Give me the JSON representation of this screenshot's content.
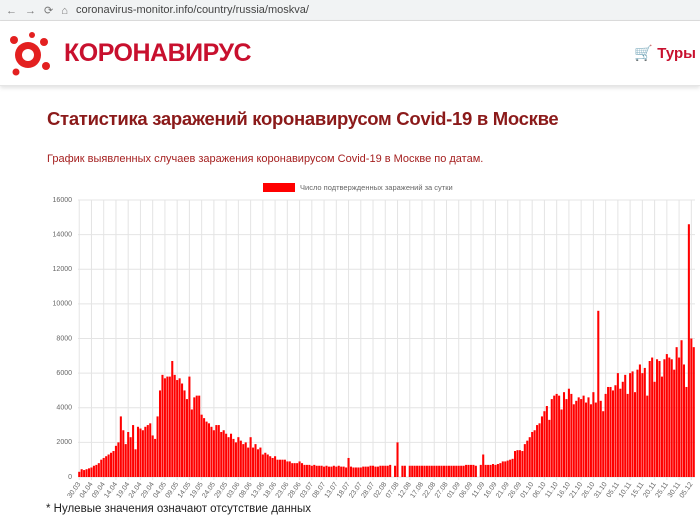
{
  "browser": {
    "url": "coronavirus-monitor.info/country/russia/moskva/"
  },
  "header": {
    "logo": "КОРОНАВИРУС",
    "link": "Туры"
  },
  "title": "Статистика заражений коронавирусом Covid-19 в Москве",
  "subtitle": "График выявленных случаев заражения коронавирусом Covid-19 в Москве по датам.",
  "footnote": "* Нулевые значения означают отсутствие данных",
  "chart_data": {
    "type": "bar",
    "legend": "top",
    "grid": true,
    "ylim": [
      0,
      16000
    ],
    "yticks": [
      0,
      2000,
      4000,
      6000,
      8000,
      10000,
      12000,
      14000,
      16000
    ],
    "categories": [
      "30.03",
      null,
      null,
      null,
      null,
      "04.04",
      null,
      null,
      null,
      null,
      "09.04",
      null,
      null,
      null,
      null,
      "14.04",
      null,
      null,
      null,
      null,
      "19.04",
      null,
      null,
      null,
      null,
      "24.04",
      null,
      null,
      null,
      null,
      "29.04",
      null,
      null,
      null,
      null,
      "04.05",
      null,
      null,
      null,
      null,
      "09.05",
      null,
      null,
      null,
      null,
      "14.05",
      null,
      null,
      null,
      null,
      "19.05",
      null,
      null,
      null,
      null,
      "24.05",
      null,
      null,
      null,
      null,
      "29.05",
      null,
      null,
      null,
      null,
      "03.06",
      null,
      null,
      null,
      null,
      "08.06",
      null,
      null,
      null,
      null,
      "13.06",
      null,
      null,
      null,
      null,
      "18.06",
      null,
      null,
      null,
      null,
      "23.06",
      null,
      null,
      null,
      null,
      "28.06",
      null,
      null,
      null,
      null,
      "03.07",
      null,
      null,
      null,
      null,
      "08.07",
      null,
      null,
      null,
      null,
      "13.07",
      null,
      null,
      null,
      null,
      "18.07",
      null,
      null,
      null,
      null,
      "23.07",
      null,
      null,
      null,
      null,
      "28.07",
      null,
      null,
      null,
      null,
      "02.08",
      null,
      null,
      null,
      null,
      "07.08",
      null,
      null,
      null,
      null,
      "12.08",
      null,
      null,
      null,
      null,
      "17.08",
      null,
      null,
      null,
      null,
      "22.08",
      null,
      null,
      null,
      null,
      "27.08",
      null,
      null,
      null,
      null,
      "01.09",
      null,
      null,
      null,
      null,
      "06.09",
      null,
      null,
      null,
      null,
      "11.09",
      null,
      null,
      null,
      null,
      "16.09",
      null,
      null,
      null,
      null,
      "21.09",
      null,
      null,
      null,
      null,
      "26.09",
      null,
      null,
      null,
      null,
      "01.10",
      null,
      null,
      null,
      null,
      "06.10",
      null,
      null,
      null,
      null,
      "11.10",
      null,
      null,
      null,
      null,
      "16.10",
      null,
      null,
      null,
      null,
      "21.10",
      null,
      null,
      null,
      null,
      "26.10",
      null,
      null,
      null,
      null,
      "31.10",
      null,
      null,
      null,
      null,
      "05.11",
      null,
      null,
      null,
      null,
      "10.11",
      null,
      null,
      null,
      null,
      "15.11",
      null,
      null,
      null,
      null,
      "20.11",
      null,
      null,
      null,
      null,
      "25.11",
      null,
      null,
      null,
      null,
      "30.11",
      null,
      null,
      null,
      null,
      "05.12",
      null
    ],
    "series": [
      {
        "name": "Число подтвержденных заражений за сутки",
        "color": "#ff0000",
        "values": [
          300,
          450,
          400,
          450,
          500,
          550,
          650,
          700,
          800,
          1000,
          1100,
          1200,
          1300,
          1400,
          1500,
          1800,
          2000,
          3500,
          2700,
          1900,
          2600,
          2300,
          3000,
          1600,
          2900,
          2800,
          2700,
          2900,
          3000,
          3100,
          2400,
          2200,
          3500,
          5000,
          5900,
          5700,
          5800,
          5800,
          6700,
          5900,
          5600,
          5700,
          5400,
          5000,
          4500,
          5800,
          3900,
          4600,
          4700,
          4700,
          3600,
          3400,
          3200,
          3100,
          2900,
          2700,
          3000,
          3000,
          2600,
          2700,
          2500,
          2300,
          2500,
          2200,
          2000,
          2300,
          2100,
          1900,
          2000,
          1700,
          2300,
          1700,
          1900,
          1600,
          1700,
          1300,
          1400,
          1300,
          1200,
          1100,
          1200,
          1000,
          1000,
          1000,
          1000,
          900,
          900,
          800,
          800,
          800,
          900,
          800,
          700,
          700,
          700,
          650,
          700,
          650,
          650,
          650,
          600,
          650,
          600,
          600,
          650,
          600,
          650,
          600,
          600,
          550,
          1100,
          600,
          550,
          550,
          550,
          550,
          600,
          600,
          600,
          650,
          650,
          600,
          600,
          650,
          650,
          650,
          650,
          700,
          0,
          650,
          2000,
          0,
          650,
          650,
          0,
          650,
          650,
          650,
          650,
          650,
          650,
          650,
          650,
          650,
          650,
          650,
          650,
          650,
          650,
          650,
          650,
          650,
          650,
          650,
          650,
          650,
          650,
          650,
          700,
          700,
          700,
          700,
          650,
          0,
          700,
          1300,
          700,
          700,
          700,
          750,
          700,
          750,
          800,
          900,
          900,
          950,
          1000,
          1050,
          1500,
          1550,
          1550,
          1500,
          1900,
          2100,
          2300,
          2600,
          2700,
          3000,
          3100,
          3500,
          3800,
          4100,
          3300,
          4500,
          4700,
          4800,
          4700,
          3900,
          4900,
          4500,
          5100,
          4800,
          4200,
          4400,
          4600,
          4500,
          4700,
          4300,
          4600,
          4200,
          4900,
          4300,
          9600,
          4400,
          3800,
          4800,
          5200,
          5200,
          5000,
          5300,
          6000,
          5100,
          5500,
          5900,
          4800,
          6000,
          6100,
          4900,
          6200,
          6500,
          6000,
          6300,
          4700,
          6700,
          6900,
          5500,
          6800,
          6700,
          5800,
          6800,
          7100,
          6900,
          6800,
          6200,
          7500,
          6900,
          7900,
          6500,
          5200,
          14600,
          8000,
          7500
        ]
      }
    ]
  }
}
